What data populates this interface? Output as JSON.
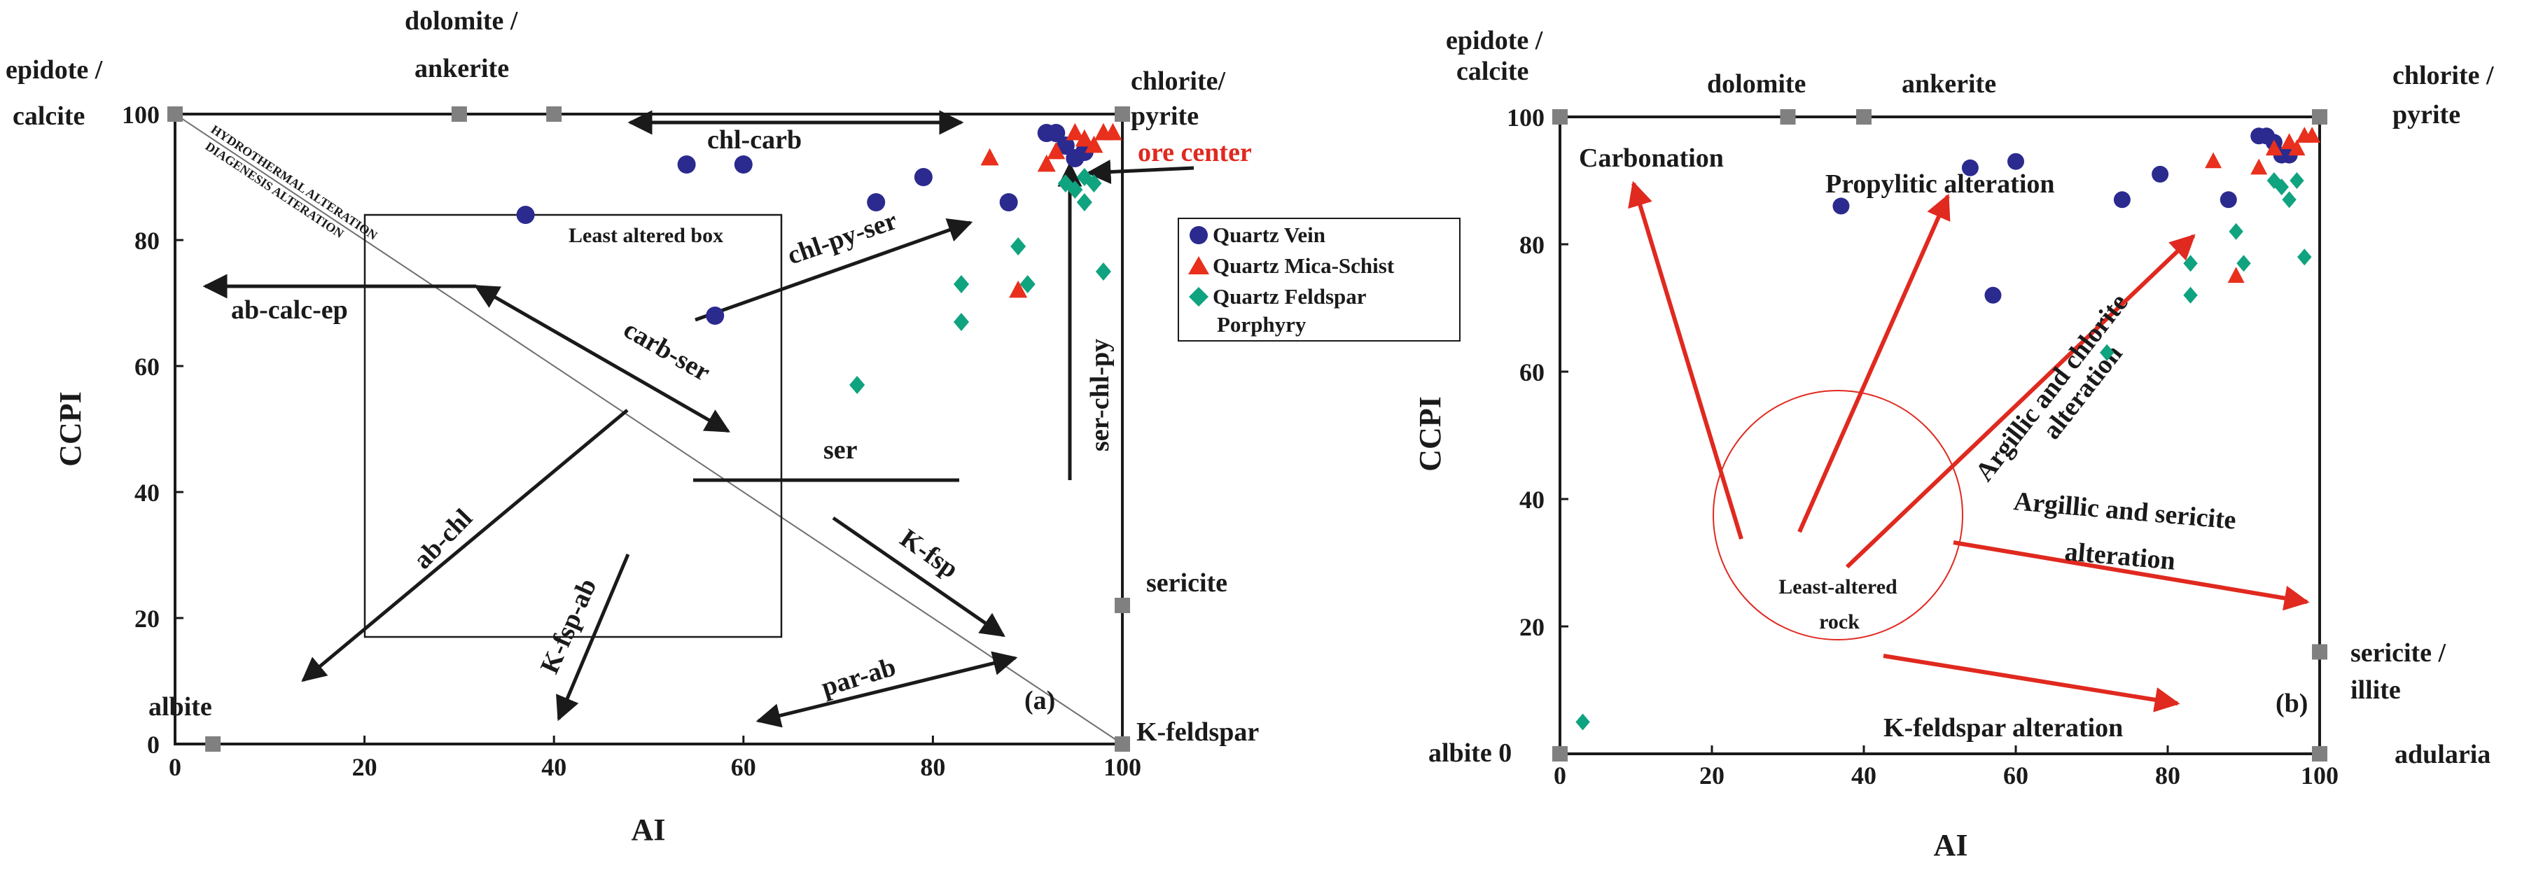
{
  "colors": {
    "quartz_vein": "#2b2a8f",
    "mica_schist": "#e8301c",
    "feldspar_porphyry": "#10a37f",
    "arrow_black": "#1a1a1a",
    "arrow_red": "#e0291f",
    "endmember": "#808080",
    "ore_center": "#e0291f"
  },
  "chart_data": [
    {
      "id": "a",
      "type": "scatter",
      "panel_label": "(a)",
      "xlabel": "AI",
      "ylabel": "CCPI",
      "xlim": [
        0,
        100
      ],
      "ylim": [
        0,
        100
      ],
      "xticks": [
        "0",
        "20",
        "40",
        "60",
        "80",
        "100"
      ],
      "yticks": [
        "0",
        "20",
        "40",
        "60",
        "80",
        "100"
      ],
      "legend": {
        "position": "right",
        "entries": [
          {
            "series": "quartz_vein",
            "label": "Quartz Vein"
          },
          {
            "series": "mica_schist",
            "label": "Quartz Mica-Schist"
          },
          {
            "series": "feldspar_porphyry",
            "label": "Quartz Feldspar",
            "label2": "Porphyry"
          }
        ]
      },
      "series": [
        {
          "name": "Quartz Vein",
          "key": "quartz_vein",
          "marker": "circle",
          "points": [
            [
              37,
              84
            ],
            [
              54,
              92
            ],
            [
              60,
              92
            ],
            [
              57,
              68
            ],
            [
              74,
              86
            ],
            [
              79,
              90
            ],
            [
              88,
              86
            ],
            [
              92,
              97
            ],
            [
              93,
              97
            ],
            [
              94,
              95
            ],
            [
              95,
              93
            ],
            [
              96,
              94
            ]
          ]
        },
        {
          "name": "Quartz Mica-Schist",
          "key": "mica_schist",
          "marker": "triangle",
          "points": [
            [
              86,
              93
            ],
            [
              89,
              72
            ],
            [
              92,
              92
            ],
            [
              93,
              94
            ],
            [
              95,
              97
            ],
            [
              96,
              96
            ],
            [
              97,
              95
            ],
            [
              98,
              97
            ],
            [
              99,
              97
            ]
          ]
        },
        {
          "name": "Quartz Feldspar Porphyry",
          "key": "feldspar_porphyry",
          "marker": "diamond",
          "points": [
            [
              72,
              57
            ],
            [
              83,
              67
            ],
            [
              83,
              73
            ],
            [
              89,
              79
            ],
            [
              90,
              73
            ],
            [
              94,
              89
            ],
            [
              95,
              88
            ],
            [
              96,
              86
            ],
            [
              96,
              90
            ],
            [
              97,
              89
            ],
            [
              98,
              75
            ]
          ]
        }
      ],
      "endmembers": [
        {
          "label": "epidote /",
          "label2": "calcite",
          "x": 0,
          "y": 100
        },
        {
          "label": "dolomite /",
          "label2": "ankerite",
          "x": 30,
          "y": 100,
          "x2": 40
        },
        {
          "label": "chlorite/",
          "label2": "pyrite",
          "x": 100,
          "y": 100
        },
        {
          "label": "sericite",
          "x": 100,
          "y": 22
        },
        {
          "label": "K-feldspar",
          "x": 100,
          "y": 0
        },
        {
          "label": "albite",
          "x": 4,
          "y": 0
        }
      ],
      "annotations": {
        "ore_center": "ore center",
        "least_altered_box": "Least altered box",
        "least_altered_box_range": {
          "x": [
            20,
            64
          ],
          "y": [
            17,
            84
          ]
        },
        "hydrothermal": "HYDROTHERMAL ALTERATION",
        "diagenesis": "DIAGENESIS ALTERATION",
        "trends": [
          "chl-carb",
          "chl-py-ser",
          "carb-ser",
          "ab-calc-ep",
          "ser",
          "ser-chl-py",
          "ab-chl",
          "K-fsp-ab",
          "K-fsp",
          "par-ab"
        ]
      }
    },
    {
      "id": "b",
      "type": "scatter",
      "panel_label": "(b)",
      "xlabel": "AI",
      "ylabel": "CCPI",
      "xlim": [
        0,
        100
      ],
      "ylim": [
        0,
        100
      ],
      "xticks": [
        "0",
        "20",
        "40",
        "60",
        "80",
        "100"
      ],
      "yticks": [
        "20",
        "40",
        "60",
        "80",
        "100"
      ],
      "series": [
        {
          "name": "Quartz Vein",
          "key": "quartz_vein",
          "marker": "circle",
          "points": [
            [
              37,
              86
            ],
            [
              54,
              92
            ],
            [
              60,
              93
            ],
            [
              57,
              72
            ],
            [
              74,
              87
            ],
            [
              79,
              91
            ],
            [
              88,
              87
            ],
            [
              92,
              97
            ],
            [
              93,
              97
            ],
            [
              94,
              96
            ],
            [
              95,
              94
            ],
            [
              96,
              94
            ]
          ]
        },
        {
          "name": "Quartz Mica-Schist",
          "key": "mica_schist",
          "marker": "triangle",
          "points": [
            [
              86,
              93
            ],
            [
              89,
              75
            ],
            [
              92,
              92
            ],
            [
              94,
              95
            ],
            [
              96,
              96
            ],
            [
              97,
              95
            ],
            [
              98,
              97
            ],
            [
              99,
              97
            ]
          ]
        },
        {
          "name": "Quartz Feldspar Porphyry",
          "key": "feldspar_porphyry",
          "marker": "diamond",
          "points": [
            [
              3,
              5
            ],
            [
              72,
              63
            ],
            [
              83,
              72
            ],
            [
              83,
              77
            ],
            [
              89,
              82
            ],
            [
              90,
              77
            ],
            [
              94,
              90
            ],
            [
              95,
              89
            ],
            [
              96,
              87
            ],
            [
              97,
              90
            ],
            [
              98,
              78
            ]
          ]
        }
      ],
      "endmembers": [
        {
          "label": "epidote /",
          "label2": "calcite",
          "x": 0,
          "y": 100
        },
        {
          "label": "dolomite",
          "x": 30,
          "y": 100
        },
        {
          "label": "ankerite",
          "x": 40,
          "y": 100
        },
        {
          "label": "chlorite /",
          "label2": "pyrite",
          "x": 100,
          "y": 100
        },
        {
          "label": "sericite /",
          "label2": "illite",
          "x": 100,
          "y": 16
        },
        {
          "label": "adularia",
          "x": 100,
          "y": 0
        },
        {
          "label": "albite 0",
          "x": 0,
          "y": 0
        }
      ],
      "annotations": {
        "trends": [
          "Carbonation",
          "Propylitic alteration",
          "Argillic and chlorite",
          "alteration",
          "Argillic and sericite",
          "alteration",
          "K-feldspar alteration"
        ],
        "least_altered": [
          "Least-altered",
          "rock"
        ]
      }
    }
  ]
}
